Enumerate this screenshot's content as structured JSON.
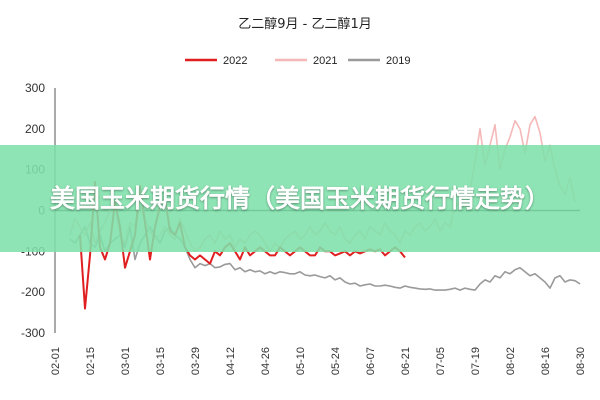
{
  "banner": {
    "text": "美国玉米期货行情（美国玉米期货行情走势）"
  },
  "colors": {
    "s2022": "#e02020",
    "s2021": "#f5b8b8",
    "s2019": "#9a9a9a",
    "zero_line": "#222222",
    "axis": "#555555"
  },
  "chart_data": {
    "type": "line",
    "title": "乙二醇9月 - 乙二醇1月",
    "xlabel": "",
    "ylabel": "",
    "ylim": [
      -300,
      300
    ],
    "yticks": [
      300,
      200,
      100,
      0,
      -100,
      -200,
      -300
    ],
    "xticks": [
      "02-01",
      "02-15",
      "03-01",
      "03-15",
      "03-29",
      "04-12",
      "04-26",
      "05-10",
      "05-24",
      "06-07",
      "06-21",
      "07-05",
      "07-19",
      "08-02",
      "08-16",
      "08-30"
    ],
    "legend_position": "top-center",
    "grid": false,
    "x": [
      "02-01",
      "02-03",
      "02-05",
      "02-07",
      "02-09",
      "02-11",
      "02-13",
      "02-15",
      "02-17",
      "02-19",
      "02-21",
      "02-23",
      "02-25",
      "02-27",
      "03-01",
      "03-03",
      "03-05",
      "03-07",
      "03-09",
      "03-11",
      "03-13",
      "03-15",
      "03-17",
      "03-19",
      "03-21",
      "03-23",
      "03-25",
      "03-27",
      "03-29",
      "03-31",
      "04-02",
      "04-04",
      "04-06",
      "04-08",
      "04-10",
      "04-12",
      "04-14",
      "04-16",
      "04-18",
      "04-20",
      "04-22",
      "04-24",
      "04-26",
      "04-28",
      "04-30",
      "05-02",
      "05-04",
      "05-06",
      "05-08",
      "05-10",
      "05-12",
      "05-14",
      "05-16",
      "05-18",
      "05-20",
      "05-22",
      "05-24",
      "05-26",
      "05-28",
      "05-30",
      "06-01",
      "06-03",
      "06-05",
      "06-07",
      "06-09",
      "06-11",
      "06-13",
      "06-15",
      "06-17",
      "06-19",
      "06-21",
      "06-23",
      "06-25",
      "06-27",
      "06-29",
      "07-01",
      "07-03",
      "07-05",
      "07-07",
      "07-09",
      "07-11",
      "07-13",
      "07-15",
      "07-17",
      "07-19",
      "07-21",
      "07-23",
      "07-25",
      "07-27",
      "07-29",
      "07-31",
      "08-02",
      "08-04",
      "08-06",
      "08-08",
      "08-10",
      "08-12",
      "08-14",
      "08-16",
      "08-18",
      "08-20",
      "08-22",
      "08-24",
      "08-26",
      "08-28",
      "08-30"
    ],
    "series": [
      {
        "name": "2022",
        "color_key": "s2022",
        "values": [
          null,
          null,
          null,
          null,
          null,
          -60,
          -240,
          -110,
          70,
          -90,
          -120,
          -80,
          20,
          -40,
          -140,
          -100,
          -60,
          60,
          -30,
          -120,
          -40,
          10,
          30,
          -50,
          -60,
          -30,
          -90,
          -110,
          -120,
          -110,
          -120,
          -130,
          -100,
          -110,
          -90,
          -80,
          -100,
          -120,
          -90,
          -110,
          -100,
          -90,
          -100,
          -110,
          -110,
          -90,
          -100,
          -110,
          -100,
          -90,
          -100,
          -110,
          -110,
          -90,
          -100,
          -100,
          -110,
          -105,
          -100,
          -110,
          -100,
          -105,
          -100,
          -95,
          -100,
          -95,
          -110,
          -100,
          -90,
          -100,
          -115,
          null,
          null,
          null,
          null,
          null,
          null,
          null,
          null,
          null,
          null,
          null,
          null,
          null,
          null,
          null,
          null,
          null,
          null,
          null,
          null,
          null,
          null,
          null,
          null,
          null,
          null,
          null,
          null,
          null,
          null,
          null,
          null,
          null,
          null,
          null
        ]
      },
      {
        "name": "2021",
        "color_key": "s2021",
        "values": [
          null,
          null,
          null,
          -60,
          -20,
          -40,
          -60,
          -30,
          -80,
          -50,
          -30,
          0,
          20,
          -60,
          -80,
          -30,
          -40,
          10,
          -20,
          -50,
          -70,
          -60,
          -40,
          -60,
          -70,
          -20,
          -50,
          -80,
          -100,
          -90,
          -70,
          -60,
          -80,
          -50,
          -70,
          -60,
          -90,
          -70,
          -80,
          -60,
          -50,
          -60,
          -80,
          -100,
          -80,
          -90,
          -70,
          -60,
          -50,
          -70,
          -60,
          -40,
          -60,
          -50,
          -30,
          -50,
          -60,
          -40,
          -70,
          -80,
          -60,
          -50,
          -70,
          -40,
          -50,
          -60,
          -30,
          -50,
          -60,
          -80,
          -50,
          -60,
          -40,
          -30,
          -50,
          -40,
          -20,
          -50,
          -30,
          -40,
          10,
          20,
          0,
          50,
          120,
          200,
          110,
          160,
          210,
          100,
          150,
          180,
          220,
          200,
          140,
          210,
          230,
          190,
          120,
          160,
          100,
          60,
          40,
          80,
          20,
          null
        ]
      },
      {
        "name": "2019",
        "color_key": "s2019",
        "values": [
          null,
          null,
          null,
          -70,
          -80,
          -60,
          -40,
          -80,
          -90,
          -60,
          -100,
          -80,
          -70,
          -60,
          -90,
          -40,
          -120,
          -80,
          -60,
          -40,
          -60,
          -80,
          -50,
          -40,
          -60,
          -70,
          -90,
          -120,
          -140,
          -130,
          -135,
          -130,
          -140,
          -138,
          -132,
          -130,
          -145,
          -140,
          -150,
          -145,
          -150,
          -148,
          -155,
          -150,
          -155,
          -150,
          -152,
          -155,
          -155,
          -150,
          -158,
          -160,
          -158,
          -162,
          -165,
          -160,
          -170,
          -165,
          -175,
          -180,
          -178,
          -185,
          -182,
          -180,
          -185,
          -185,
          -183,
          -185,
          -188,
          -190,
          -185,
          -188,
          -190,
          -192,
          -193,
          -192,
          -195,
          -195,
          -195,
          -193,
          -190,
          -195,
          -190,
          -193,
          -195,
          -180,
          -170,
          -175,
          -160,
          -165,
          -150,
          -155,
          -145,
          -140,
          -150,
          -160,
          -155,
          -165,
          -175,
          -190,
          -165,
          -160,
          -175,
          -170,
          -172,
          -180
        ]
      }
    ]
  }
}
